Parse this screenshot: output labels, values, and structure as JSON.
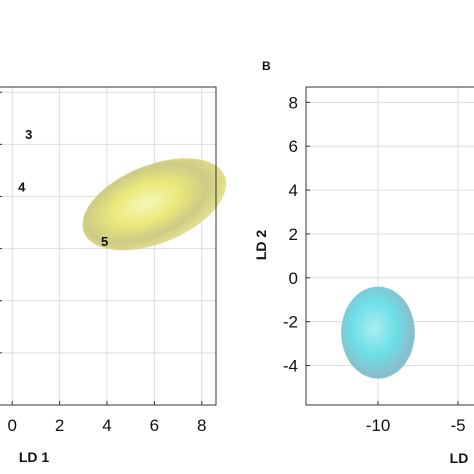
{
  "chart_data": [
    {
      "type": "scatter",
      "panel_label": "",
      "xlabel": "LD 1",
      "ylabel": "",
      "xlim": [
        -0.6,
        8.6
      ],
      "ylim": [
        -4.0,
        8.2
      ],
      "x_ticks": [
        0,
        2,
        4,
        6,
        8
      ],
      "y_ticks": [
        -4,
        -2,
        0,
        2,
        4,
        6,
        8
      ],
      "show_y_tick_labels": false,
      "grid": true,
      "annotations": [
        {
          "text": "3",
          "x": 0.7,
          "y": 6.2
        },
        {
          "text": "4",
          "x": 0.4,
          "y": 4.2
        },
        {
          "text": "5",
          "x": 3.9,
          "y": 2.1
        }
      ],
      "ellipsoids": [
        {
          "center": [
            6.0,
            3.7
          ],
          "rx": 3.2,
          "ry": 1.5,
          "rotation_deg": -22,
          "color": "#e8e870"
        }
      ]
    },
    {
      "type": "scatter",
      "panel_label": "B",
      "xlabel": "LD",
      "ylabel": "LD 2",
      "xlim": [
        -14.5,
        -2.0
      ],
      "ylim": [
        -5.8,
        8.7
      ],
      "x_ticks": [
        -10,
        -5
      ],
      "y_ticks": [
        -4,
        -2,
        0,
        2,
        4,
        6,
        8
      ],
      "grid": true,
      "annotations": [],
      "ellipsoids": [
        {
          "center": [
            -10.0,
            -2.5
          ],
          "rx": 2.3,
          "ry": 2.1,
          "rotation_deg": 0,
          "color": "#5fdde5"
        }
      ]
    }
  ]
}
